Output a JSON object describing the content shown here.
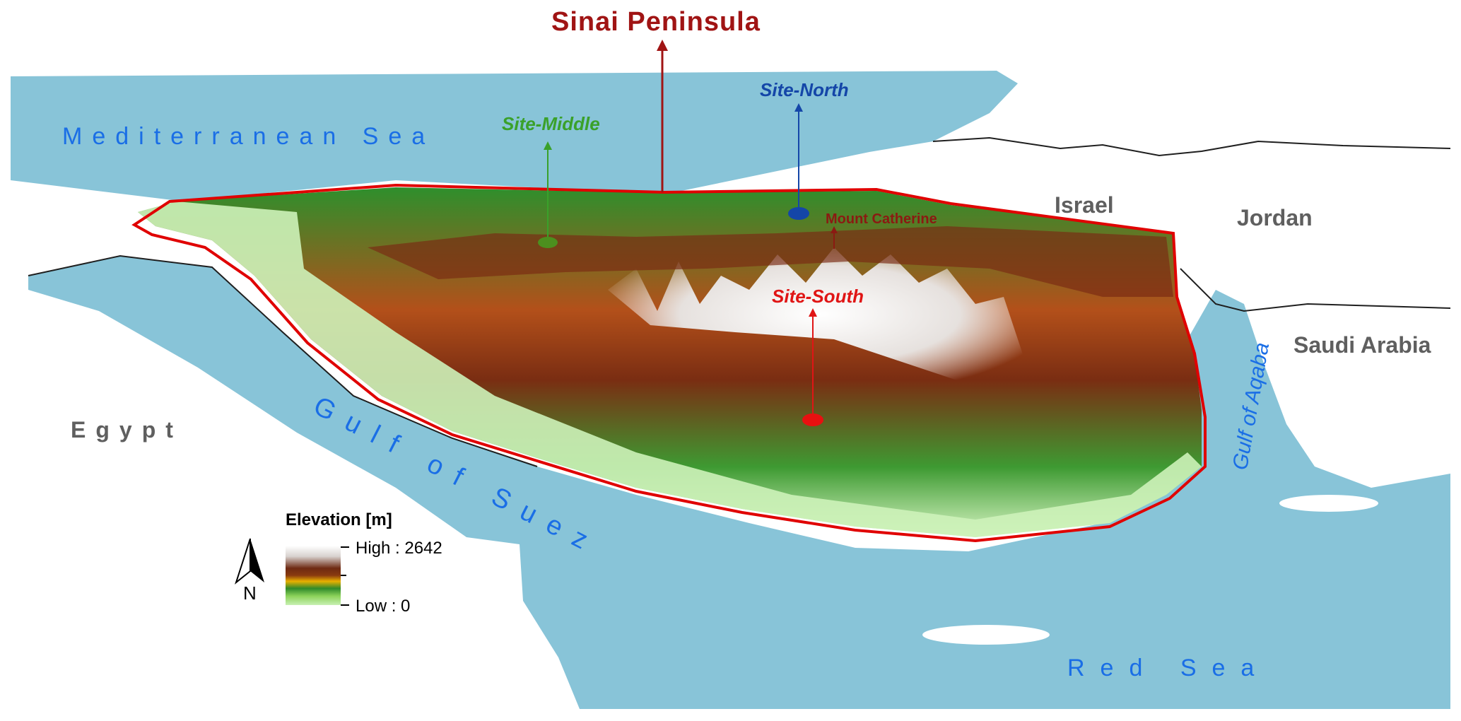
{
  "title": "Sinai Peninsula",
  "seas": {
    "mediterranean": "Mediterranean Sea",
    "red_sea": "Red Sea",
    "gulf_of_suez": "Gulf of Suez",
    "gulf_of_aqaba": "Gulf of Aqaba"
  },
  "countries": {
    "egypt": "Egypt",
    "israel": "Israel",
    "jordan": "Jordan",
    "saudi_arabia": "Saudi Arabia"
  },
  "sites": {
    "north": "Site-North",
    "middle": "Site-Middle",
    "south": "Site-South"
  },
  "landmarks": {
    "mount_catherine": "Mount Catherine"
  },
  "legend": {
    "title": "Elevation [m]",
    "high_label": "High : 2642",
    "low_label": "Low : 0",
    "high_value": 2642,
    "low_value": 0
  },
  "north_arrow": {
    "label": "N"
  },
  "colors": {
    "sea": "#88c4d8",
    "land": "#ffffff",
    "boundary": "#e00000",
    "title": "#a01414",
    "sea_label": "#1a6ee6",
    "country_label": "#5f5f5f",
    "site_north": "#1446a8",
    "site_middle": "#3aa12a",
    "site_south": "#e01515",
    "mount_label": "#8b1a12"
  }
}
